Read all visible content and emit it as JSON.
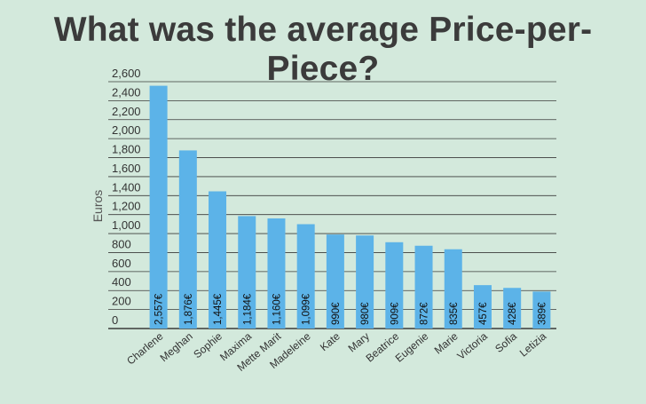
{
  "title": "What was the average Price-per-Piece?",
  "chart_data": {
    "type": "bar",
    "title": "What was the average Price-per-Piece?",
    "ylabel": "Euros",
    "xlabel": "",
    "ylim": [
      0,
      2600
    ],
    "yticks": [
      0,
      200,
      400,
      600,
      800,
      1000,
      1200,
      1400,
      1600,
      1800,
      2000,
      2200,
      2400,
      2600
    ],
    "ytick_labels": [
      "0",
      "200",
      "400",
      "600",
      "800",
      "1,000",
      "1,200",
      "1,400",
      "1,600",
      "1,800",
      "2,000",
      "2,200",
      "2,400",
      "2,600"
    ],
    "grid": true,
    "categories": [
      "Charlene",
      "Meghan",
      "Sophie",
      "Maxima",
      "Mette Marit",
      "Madeleine",
      "Kate",
      "Mary",
      "Beatrice",
      "Eugenie",
      "Marie",
      "Victoria",
      "Sofia",
      "Letizia"
    ],
    "values": [
      2557,
      1876,
      1445,
      1184,
      1160,
      1099,
      990,
      980,
      909,
      872,
      835,
      457,
      428,
      389
    ],
    "value_labels": [
      "2,557€",
      "1,876€",
      "1,445€",
      "1,184€",
      "1,160€",
      "1,099€",
      "990€",
      "980€",
      "909€",
      "872€",
      "835€",
      "457€",
      "428€",
      "389€"
    ],
    "bar_color": "#5cb3e8",
    "grid_color": "#3a3a3a",
    "background": "#d3e9dc"
  }
}
